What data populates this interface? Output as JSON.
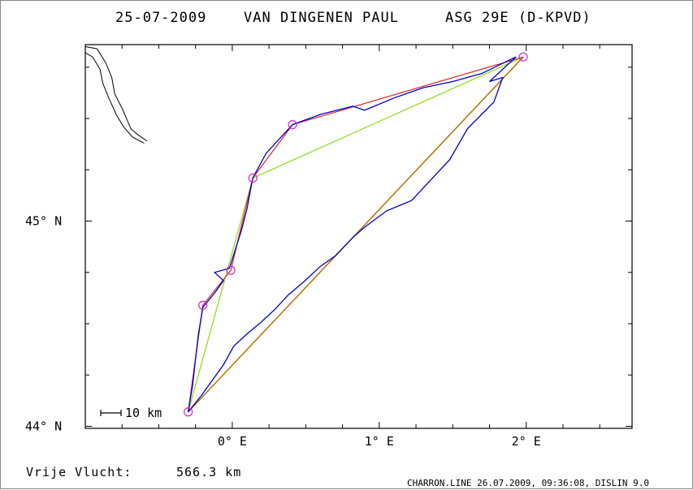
{
  "header": {
    "date": "25-07-2009",
    "pilot": "VAN DINGENEN PAUL",
    "glider": "ASG 29E (D-KPVD)"
  },
  "axes": {
    "lat_ticks": [
      {
        "label": "44° N",
        "value": 44.0
      },
      {
        "label": "45° N",
        "value": 45.0
      }
    ],
    "lon_ticks": [
      {
        "label": "0° E",
        "value": 0.0
      },
      {
        "label": "1° E",
        "value": 1.0
      },
      {
        "label": "2° E",
        "value": 2.0
      }
    ],
    "lon_range": [
      -1.0,
      2.72
    ],
    "lat_range": [
      43.99,
      45.86
    ]
  },
  "scale_bar": {
    "label": "10 km"
  },
  "summary": {
    "label": "Vrije Vlucht:",
    "value": "566.3 km"
  },
  "credit": "CHARRON.LINE 26.07.2009, 09:36:08, DISLIN 9.0",
  "colors": {
    "track": "#0000cc",
    "task_line": "#dd2222",
    "triangle_line": "#88dd11",
    "closing_line": "#b86a00",
    "turnpoint": "#dd22cc",
    "coast": "#000000"
  },
  "turnpoints": [
    {
      "lon": -0.3,
      "lat": 44.07
    },
    {
      "lon": -0.2,
      "lat": 44.59
    },
    {
      "lon": -0.01,
      "lat": 44.76
    },
    {
      "lon": 0.14,
      "lat": 45.21
    },
    {
      "lon": 0.41,
      "lat": 45.47
    },
    {
      "lon": 1.98,
      "lat": 45.8
    }
  ],
  "task_path": [
    {
      "lon": -0.3,
      "lat": 44.07
    },
    {
      "lon": -0.2,
      "lat": 44.59
    },
    {
      "lon": -0.01,
      "lat": 44.76
    },
    {
      "lon": 0.14,
      "lat": 45.21
    },
    {
      "lon": 0.41,
      "lat": 45.47
    },
    {
      "lon": 1.98,
      "lat": 45.8
    }
  ],
  "triangle_path": [
    {
      "lon": -0.3,
      "lat": 44.07
    },
    {
      "lon": 0.14,
      "lat": 45.21
    },
    {
      "lon": 1.98,
      "lat": 45.8
    },
    {
      "lon": -0.3,
      "lat": 44.07
    }
  ],
  "closing_path": [
    {
      "lon": 1.98,
      "lat": 45.8
    },
    {
      "lon": -0.3,
      "lat": 44.07
    }
  ],
  "track": [
    {
      "lon": -0.3,
      "lat": 44.07
    },
    {
      "lon": -0.27,
      "lat": 44.2
    },
    {
      "lon": -0.25,
      "lat": 44.33
    },
    {
      "lon": -0.23,
      "lat": 44.45
    },
    {
      "lon": -0.2,
      "lat": 44.58
    },
    {
      "lon": -0.12,
      "lat": 44.65
    },
    {
      "lon": -0.06,
      "lat": 44.71
    },
    {
      "lon": -0.12,
      "lat": 44.75
    },
    {
      "lon": -0.02,
      "lat": 44.77
    },
    {
      "lon": 0.06,
      "lat": 44.95
    },
    {
      "lon": 0.1,
      "lat": 45.06
    },
    {
      "lon": 0.14,
      "lat": 45.21
    },
    {
      "lon": 0.23,
      "lat": 45.33
    },
    {
      "lon": 0.41,
      "lat": 45.47
    },
    {
      "lon": 0.6,
      "lat": 45.52
    },
    {
      "lon": 0.82,
      "lat": 45.56
    },
    {
      "lon": 0.9,
      "lat": 45.54
    },
    {
      "lon": 1.1,
      "lat": 45.6
    },
    {
      "lon": 1.3,
      "lat": 45.65
    },
    {
      "lon": 1.5,
      "lat": 45.68
    },
    {
      "lon": 1.7,
      "lat": 45.72
    },
    {
      "lon": 1.9,
      "lat": 45.79
    },
    {
      "lon": 1.93,
      "lat": 45.8
    },
    {
      "lon": 1.75,
      "lat": 45.68
    },
    {
      "lon": 1.84,
      "lat": 45.7
    },
    {
      "lon": 1.78,
      "lat": 45.58
    },
    {
      "lon": 1.6,
      "lat": 45.45
    },
    {
      "lon": 1.48,
      "lat": 45.3
    },
    {
      "lon": 1.35,
      "lat": 45.2
    },
    {
      "lon": 1.22,
      "lat": 45.1
    },
    {
      "lon": 1.05,
      "lat": 45.05
    },
    {
      "lon": 0.9,
      "lat": 44.97
    },
    {
      "lon": 0.82,
      "lat": 44.92
    },
    {
      "lon": 0.7,
      "lat": 44.83
    },
    {
      "lon": 0.6,
      "lat": 44.78
    },
    {
      "lon": 0.48,
      "lat": 44.7
    },
    {
      "lon": 0.38,
      "lat": 44.64
    },
    {
      "lon": 0.29,
      "lat": 44.57
    },
    {
      "lon": 0.2,
      "lat": 44.51
    },
    {
      "lon": 0.1,
      "lat": 44.45
    },
    {
      "lon": 0.01,
      "lat": 44.39
    },
    {
      "lon": -0.06,
      "lat": 44.3
    },
    {
      "lon": -0.14,
      "lat": 44.22
    },
    {
      "lon": -0.21,
      "lat": 44.15
    },
    {
      "lon": -0.3,
      "lat": 44.07
    }
  ],
  "coast_segments": [
    [
      {
        "lon": -1.0,
        "lat": 45.85
      },
      {
        "lon": -0.92,
        "lat": 45.84
      },
      {
        "lon": -0.86,
        "lat": 45.77
      },
      {
        "lon": -0.82,
        "lat": 45.7
      },
      {
        "lon": -0.8,
        "lat": 45.62
      },
      {
        "lon": -0.75,
        "lat": 45.55
      },
      {
        "lon": -0.72,
        "lat": 45.5
      },
      {
        "lon": -0.69,
        "lat": 45.45
      },
      {
        "lon": -0.64,
        "lat": 45.42
      },
      {
        "lon": -0.58,
        "lat": 45.39
      }
    ],
    [
      {
        "lon": -1.0,
        "lat": 45.82
      },
      {
        "lon": -0.95,
        "lat": 45.8
      },
      {
        "lon": -0.9,
        "lat": 45.74
      },
      {
        "lon": -0.88,
        "lat": 45.67
      },
      {
        "lon": -0.84,
        "lat": 45.6
      },
      {
        "lon": -0.79,
        "lat": 45.52
      },
      {
        "lon": -0.74,
        "lat": 45.46
      },
      {
        "lon": -0.68,
        "lat": 45.41
      },
      {
        "lon": -0.6,
        "lat": 45.38
      }
    ]
  ]
}
